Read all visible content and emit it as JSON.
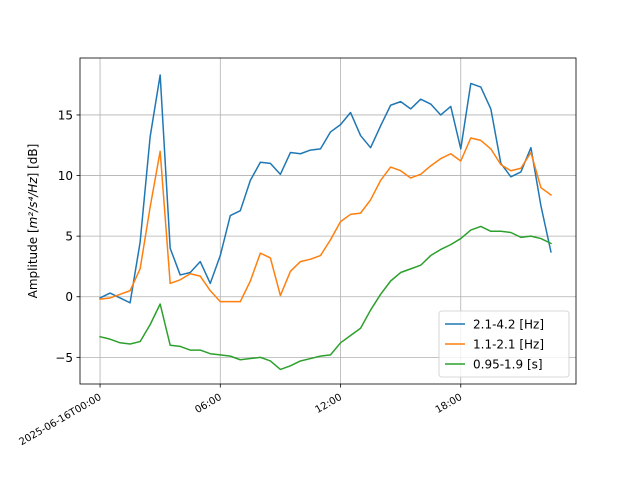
{
  "chart_data": {
    "type": "line",
    "title": "",
    "xlabel": "",
    "ylabel_main": "Amplitude [",
    "ylabel_math": "m²/s⁴/Hz",
    "ylabel_tail": "] [dB]",
    "x_start": "2025-06-16T00:00",
    "x_step": "30min",
    "xlim": [
      "2025-06-15T23:00",
      "2025-06-16T23:45"
    ],
    "ylim": [
      -7.2,
      19.7
    ],
    "x_ticks": [
      {
        "time": "2025-06-16T00:00",
        "label": "2025-06-16T00:00"
      },
      {
        "time": "2025-06-16T06:00",
        "label": "06:00"
      },
      {
        "time": "2025-06-16T12:00",
        "label": "12:00"
      },
      {
        "time": "2025-06-16T18:00",
        "label": "18:00"
      }
    ],
    "y_ticks": [
      {
        "value": -5,
        "label": "−5"
      },
      {
        "value": 0,
        "label": "0"
      },
      {
        "value": 5,
        "label": "5"
      },
      {
        "value": 10,
        "label": "10"
      },
      {
        "value": 15,
        "label": "15"
      }
    ],
    "grid": true,
    "legend_position": "lower-right",
    "series": [
      {
        "name": "2.1-4.2 [Hz]",
        "color": "#1f77b4",
        "values": [
          -0.1,
          0.3,
          -0.1,
          -0.5,
          4.5,
          13.2,
          18.3,
          4.0,
          1.8,
          2.0,
          2.9,
          1.1,
          3.4,
          6.7,
          7.1,
          9.6,
          11.1,
          11.0,
          10.1,
          11.9,
          11.8,
          12.1,
          12.2,
          13.6,
          14.2,
          15.2,
          13.3,
          12.3,
          14.1,
          15.8,
          16.1,
          15.5,
          16.3,
          15.9,
          15.0,
          15.7,
          12.2,
          17.6,
          17.3,
          15.5,
          11.0,
          9.9,
          10.3,
          12.3,
          7.5,
          3.7
        ]
      },
      {
        "name": "1.1-2.1 [Hz]",
        "color": "#ff7f0e",
        "values": [
          -0.2,
          -0.1,
          0.2,
          0.5,
          2.3,
          7.4,
          12.0,
          1.1,
          1.4,
          1.9,
          1.7,
          0.5,
          -0.4,
          -0.4,
          -0.4,
          1.3,
          3.6,
          3.2,
          0.1,
          2.1,
          2.9,
          3.1,
          3.4,
          4.7,
          6.2,
          6.8,
          6.9,
          8.0,
          9.6,
          10.7,
          10.4,
          9.8,
          10.1,
          10.8,
          11.4,
          11.8,
          11.2,
          13.1,
          12.9,
          12.2,
          10.9,
          10.4,
          10.6,
          11.9,
          9.0,
          8.4
        ]
      },
      {
        "name": "0.95-1.9 [s]",
        "color": "#2ca02c",
        "values": [
          -3.3,
          -3.5,
          -3.8,
          -3.9,
          -3.7,
          -2.3,
          -0.6,
          -4.0,
          -4.1,
          -4.4,
          -4.4,
          -4.7,
          -4.8,
          -4.9,
          -5.2,
          -5.1,
          -5.0,
          -5.3,
          -6.0,
          -5.7,
          -5.3,
          -5.1,
          -4.9,
          -4.8,
          -3.8,
          -3.2,
          -2.6,
          -1.1,
          0.2,
          1.3,
          2.0,
          2.3,
          2.6,
          3.4,
          3.9,
          4.3,
          4.8,
          5.5,
          5.8,
          5.4,
          5.4,
          5.3,
          4.9,
          5.0,
          4.8,
          4.4
        ]
      }
    ]
  }
}
